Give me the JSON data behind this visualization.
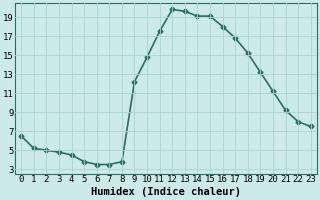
{
  "x": [
    0,
    1,
    2,
    3,
    4,
    5,
    6,
    7,
    8,
    9,
    10,
    11,
    12,
    13,
    14,
    15,
    16,
    17,
    18,
    19,
    20,
    21,
    22,
    23
  ],
  "y": [
    6.5,
    5.2,
    5.0,
    4.8,
    4.5,
    3.8,
    3.5,
    3.5,
    3.8,
    12.2,
    14.8,
    17.5,
    19.8,
    19.6,
    19.1,
    19.1,
    18.0,
    16.8,
    15.2,
    13.2,
    11.2,
    9.2,
    8.0,
    7.5
  ],
  "line_color": "#2a6e64",
  "marker": "D",
  "marker_size": 2.5,
  "bg_color": "#cceae8",
  "grid_color": "#aad4d0",
  "xlabel": "Humidex (Indice chaleur)",
  "xlim": [
    -0.5,
    23.5
  ],
  "ylim": [
    2.5,
    20.5
  ],
  "yticks": [
    3,
    5,
    7,
    9,
    11,
    13,
    15,
    17,
    19
  ],
  "xticks": [
    0,
    1,
    2,
    3,
    4,
    5,
    6,
    7,
    8,
    9,
    10,
    11,
    12,
    13,
    14,
    15,
    16,
    17,
    18,
    19,
    20,
    21,
    22,
    23
  ],
  "xlabel_fontsize": 7.5,
  "tick_fontsize": 6.5,
  "linewidth": 1.2
}
